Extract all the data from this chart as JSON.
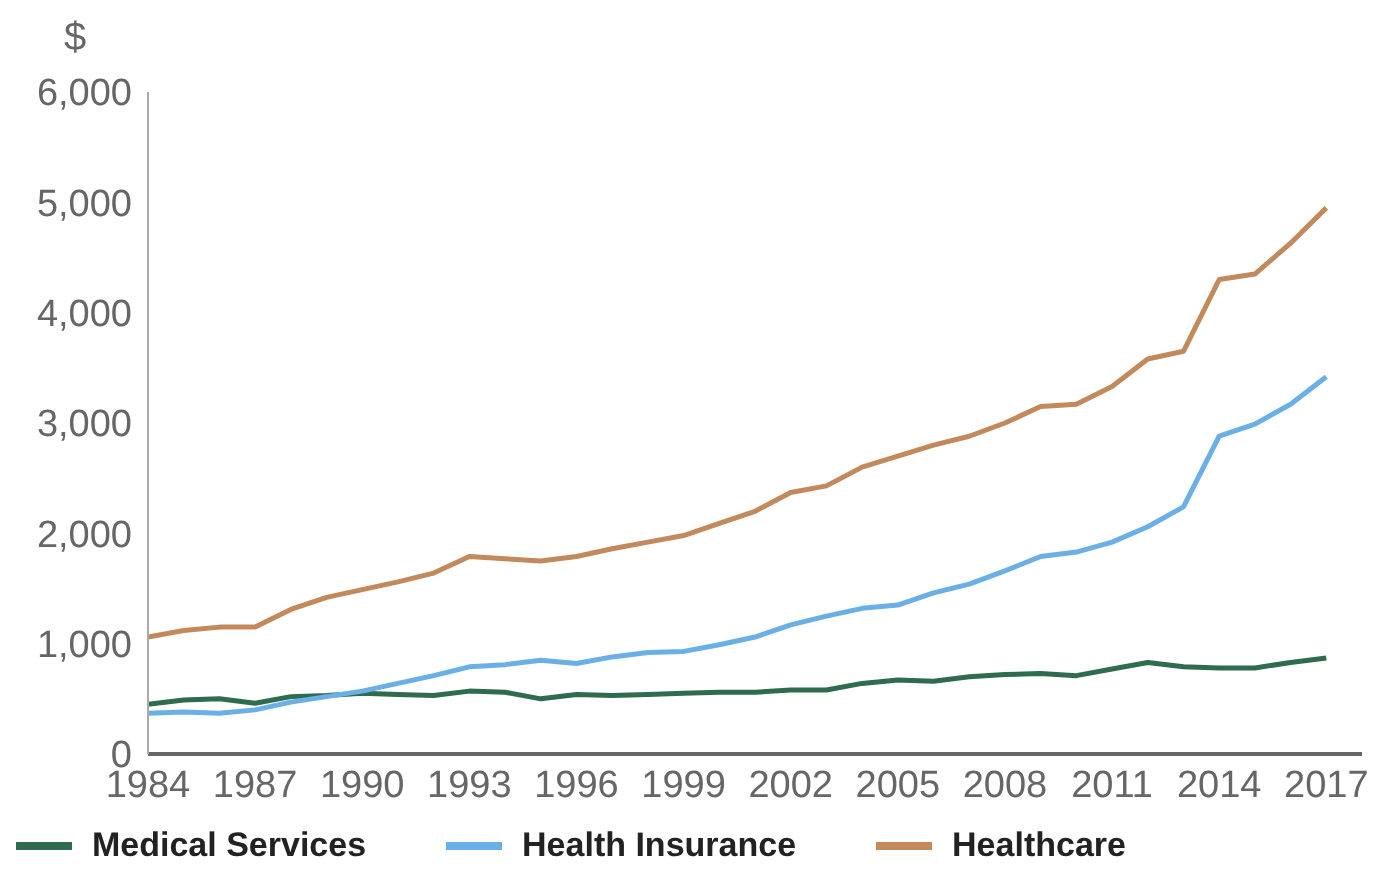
{
  "chart_data": {
    "type": "line",
    "ylabel": "$",
    "x": [
      1984,
      1985,
      1986,
      1987,
      1988,
      1989,
      1990,
      1991,
      1992,
      1993,
      1994,
      1995,
      1996,
      1997,
      1998,
      1999,
      2000,
      2001,
      2002,
      2003,
      2004,
      2005,
      2006,
      2007,
      2008,
      2009,
      2010,
      2011,
      2012,
      2013,
      2014,
      2015,
      2016,
      2017
    ],
    "series": [
      {
        "name": "Medical Services",
        "color": "#2e6b4f",
        "values": [
          450,
          490,
          500,
          460,
          520,
          530,
          550,
          540,
          530,
          570,
          560,
          500,
          540,
          530,
          540,
          550,
          560,
          560,
          580,
          580,
          640,
          670,
          660,
          700,
          720,
          730,
          710,
          770,
          830,
          790,
          780,
          780,
          830,
          870
        ]
      },
      {
        "name": "Health Insurance",
        "color": "#6aafe6",
        "values": [
          370,
          380,
          370,
          400,
          470,
          520,
          570,
          640,
          710,
          790,
          810,
          850,
          820,
          880,
          920,
          930,
          990,
          1060,
          1170,
          1250,
          1320,
          1350,
          1460,
          1540,
          1660,
          1790,
          1830,
          1920,
          2060,
          2240,
          2880,
          2990,
          3170,
          3420
        ]
      },
      {
        "name": "Healthcare",
        "color": "#c28a5c",
        "values": [
          1060,
          1120,
          1150,
          1150,
          1310,
          1420,
          1490,
          1560,
          1640,
          1790,
          1770,
          1750,
          1790,
          1860,
          1920,
          1980,
          2090,
          2200,
          2370,
          2430,
          2600,
          2700,
          2800,
          2880,
          3000,
          3150,
          3170,
          3330,
          3580,
          3650,
          4300,
          4350,
          4630,
          4950
        ]
      }
    ],
    "xlim": [
      1984,
      2018
    ],
    "xticks": [
      1984,
      1987,
      1990,
      1993,
      1996,
      1999,
      2002,
      2005,
      2008,
      2011,
      2014,
      2017
    ],
    "ylim": [
      0,
      6000
    ],
    "yticks": [
      0,
      {
        "value": 1000,
        "label": "1,000"
      },
      {
        "value": 2000,
        "label": "2,000"
      },
      {
        "value": 3000,
        "label": "3,000"
      },
      {
        "value": 4000,
        "label": "4,000"
      },
      {
        "value": 5000,
        "label": "5,000"
      },
      {
        "value": 6000,
        "label": "6,000"
      }
    ],
    "grid": false,
    "legend": "bottom",
    "marker": "none",
    "line_style": "solid"
  }
}
